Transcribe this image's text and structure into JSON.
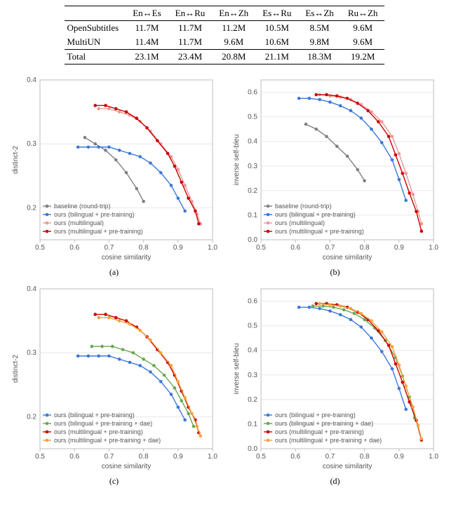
{
  "table": {
    "columns": [
      "",
      "En↔Es",
      "En↔Ru",
      "En↔Zh",
      "Es↔Ru",
      "Es↔Zh",
      "Ru↔Zh"
    ],
    "rows": [
      [
        "OpenSubtitles",
        "11.7M",
        "11.7M",
        "11.2M",
        "10.5M",
        "8.5M",
        "9.6M"
      ],
      [
        "MultiUN",
        "11.4M",
        "11.7M",
        "9.6M",
        "10.6M",
        "9.8M",
        "9.6M"
      ],
      [
        "Total",
        "23.1M",
        "23.4M",
        "20.8M",
        "21.1M",
        "18.3M",
        "19.2M"
      ]
    ]
  },
  "chart_common": {
    "x_label": "cosine similarity",
    "x_min": 0.5,
    "x_max": 1.0,
    "x_ticks": [
      0.5,
      0.6,
      0.7,
      0.8,
      0.9,
      1.0
    ],
    "colors": {
      "baseline": "#808080",
      "bilingual_pre": "#3b78d8",
      "bilingual_pre_dae": "#6aa84f",
      "multilingual": "#ea9999",
      "multilingual_pre": "#cc0000",
      "multilingual_pre_dae": "#f1a33c"
    },
    "marker_radius": 2.3,
    "line_width": 1.4,
    "tick_fontsize": 10,
    "axis_label_fontsize": 10,
    "legend_fontsize": 9,
    "grid_color": "#e8e8e8",
    "axis_color": "#bdbdbd",
    "background": "#ffffff"
  },
  "charts": {
    "a": {
      "caption": "(a)",
      "y_label": "distinct-2",
      "y_min": 0.15,
      "y_max": 0.4,
      "y_ticks": [
        0.2,
        0.3,
        0.4
      ],
      "legend_pos": "bottom-left",
      "series": [
        {
          "key": "baseline",
          "label": "baseline (round-trip)",
          "pts": [
            [
              0.63,
              0.31
            ],
            [
              0.66,
              0.3
            ],
            [
              0.69,
              0.29
            ],
            [
              0.72,
              0.275
            ],
            [
              0.75,
              0.255
            ],
            [
              0.78,
              0.23
            ],
            [
              0.8,
              0.21
            ]
          ]
        },
        {
          "key": "bilingual_pre",
          "label": "ours (bilingual + pre-training)",
          "pts": [
            [
              0.61,
              0.295
            ],
            [
              0.64,
              0.295
            ],
            [
              0.67,
              0.295
            ],
            [
              0.7,
              0.295
            ],
            [
              0.73,
              0.29
            ],
            [
              0.76,
              0.285
            ],
            [
              0.79,
              0.28
            ],
            [
              0.82,
              0.27
            ],
            [
              0.85,
              0.255
            ],
            [
              0.88,
              0.235
            ],
            [
              0.9,
              0.215
            ],
            [
              0.92,
              0.195
            ]
          ]
        },
        {
          "key": "multilingual",
          "label": "ours (multilingual)",
          "pts": [
            [
              0.67,
              0.355
            ],
            [
              0.7,
              0.355
            ],
            [
              0.73,
              0.35
            ],
            [
              0.76,
              0.345
            ],
            [
              0.79,
              0.335
            ],
            [
              0.82,
              0.32
            ],
            [
              0.85,
              0.3
            ],
            [
              0.88,
              0.28
            ],
            [
              0.9,
              0.26
            ],
            [
              0.92,
              0.235
            ],
            [
              0.94,
              0.21
            ],
            [
              0.955,
              0.19
            ],
            [
              0.965,
              0.175
            ]
          ]
        },
        {
          "key": "multilingual_pre",
          "label": "ours (multilingual + pre-training)",
          "pts": [
            [
              0.66,
              0.36
            ],
            [
              0.69,
              0.36
            ],
            [
              0.72,
              0.355
            ],
            [
              0.75,
              0.35
            ],
            [
              0.78,
              0.34
            ],
            [
              0.81,
              0.325
            ],
            [
              0.84,
              0.305
            ],
            [
              0.87,
              0.285
            ],
            [
              0.89,
              0.265
            ],
            [
              0.91,
              0.24
            ],
            [
              0.93,
              0.215
            ],
            [
              0.95,
              0.195
            ],
            [
              0.96,
              0.175
            ]
          ]
        }
      ]
    },
    "b": {
      "caption": "(b)",
      "y_label": "inverse self-bleu",
      "y_min": 0.0,
      "y_max": 0.65,
      "y_ticks": [
        0.0,
        0.1,
        0.2,
        0.3,
        0.4,
        0.5,
        0.6
      ],
      "legend_pos": "bottom-left",
      "series": [
        {
          "key": "baseline",
          "label": "baseline (round-trip)",
          "pts": [
            [
              0.63,
              0.47
            ],
            [
              0.66,
              0.45
            ],
            [
              0.69,
              0.42
            ],
            [
              0.72,
              0.38
            ],
            [
              0.75,
              0.34
            ],
            [
              0.78,
              0.285
            ],
            [
              0.8,
              0.24
            ]
          ]
        },
        {
          "key": "bilingual_pre",
          "label": "ours (bilingual + pre-training)",
          "pts": [
            [
              0.61,
              0.575
            ],
            [
              0.64,
              0.575
            ],
            [
              0.67,
              0.57
            ],
            [
              0.7,
              0.56
            ],
            [
              0.73,
              0.545
            ],
            [
              0.76,
              0.525
            ],
            [
              0.79,
              0.495
            ],
            [
              0.82,
              0.45
            ],
            [
              0.85,
              0.395
            ],
            [
              0.88,
              0.325
            ],
            [
              0.9,
              0.245
            ],
            [
              0.92,
              0.16
            ]
          ]
        },
        {
          "key": "multilingual",
          "label": "ours (multilingual)",
          "pts": [
            [
              0.67,
              0.59
            ],
            [
              0.7,
              0.585
            ],
            [
              0.73,
              0.58
            ],
            [
              0.76,
              0.57
            ],
            [
              0.79,
              0.55
            ],
            [
              0.82,
              0.52
            ],
            [
              0.85,
              0.48
            ],
            [
              0.88,
              0.42
            ],
            [
              0.9,
              0.35
            ],
            [
              0.92,
              0.27
            ],
            [
              0.94,
              0.185
            ],
            [
              0.955,
              0.115
            ],
            [
              0.965,
              0.065
            ]
          ]
        },
        {
          "key": "multilingual_pre",
          "label": "ours (multilingual + pre-training)",
          "pts": [
            [
              0.66,
              0.59
            ],
            [
              0.69,
              0.59
            ],
            [
              0.72,
              0.585
            ],
            [
              0.75,
              0.575
            ],
            [
              0.78,
              0.555
            ],
            [
              0.81,
              0.525
            ],
            [
              0.84,
              0.48
            ],
            [
              0.87,
              0.42
            ],
            [
              0.89,
              0.345
            ],
            [
              0.91,
              0.27
            ],
            [
              0.93,
              0.19
            ],
            [
              0.95,
              0.115
            ],
            [
              0.965,
              0.035
            ]
          ]
        }
      ]
    },
    "c": {
      "caption": "(c)",
      "y_label": "distinct-2",
      "y_min": 0.15,
      "y_max": 0.4,
      "y_ticks": [
        0.2,
        0.3,
        0.4
      ],
      "legend_pos": "bottom-left",
      "series": [
        {
          "key": "bilingual_pre",
          "label": "ours (bilingual + pre-training)",
          "pts": [
            [
              0.61,
              0.295
            ],
            [
              0.64,
              0.295
            ],
            [
              0.67,
              0.295
            ],
            [
              0.7,
              0.295
            ],
            [
              0.73,
              0.29
            ],
            [
              0.76,
              0.285
            ],
            [
              0.79,
              0.28
            ],
            [
              0.82,
              0.27
            ],
            [
              0.85,
              0.255
            ],
            [
              0.88,
              0.235
            ],
            [
              0.9,
              0.215
            ],
            [
              0.92,
              0.195
            ]
          ]
        },
        {
          "key": "bilingual_pre_dae",
          "label": "ours (bilingual + pre-training + dae)",
          "pts": [
            [
              0.65,
              0.31
            ],
            [
              0.68,
              0.31
            ],
            [
              0.71,
              0.31
            ],
            [
              0.74,
              0.305
            ],
            [
              0.77,
              0.3
            ],
            [
              0.8,
              0.29
            ],
            [
              0.83,
              0.28
            ],
            [
              0.86,
              0.265
            ],
            [
              0.89,
              0.245
            ],
            [
              0.91,
              0.225
            ],
            [
              0.93,
              0.205
            ],
            [
              0.945,
              0.185
            ]
          ]
        },
        {
          "key": "multilingual_pre",
          "label": "ours (multilingual + pre-training)",
          "pts": [
            [
              0.66,
              0.36
            ],
            [
              0.69,
              0.36
            ],
            [
              0.72,
              0.355
            ],
            [
              0.75,
              0.35
            ],
            [
              0.78,
              0.34
            ],
            [
              0.81,
              0.325
            ],
            [
              0.84,
              0.305
            ],
            [
              0.87,
              0.285
            ],
            [
              0.89,
              0.265
            ],
            [
              0.91,
              0.24
            ],
            [
              0.93,
              0.215
            ],
            [
              0.95,
              0.195
            ],
            [
              0.96,
              0.175
            ]
          ]
        },
        {
          "key": "multilingual_pre_dae",
          "label": "ours (multilingual + pre-training + dae)",
          "pts": [
            [
              0.67,
              0.355
            ],
            [
              0.7,
              0.355
            ],
            [
              0.73,
              0.35
            ],
            [
              0.76,
              0.345
            ],
            [
              0.79,
              0.335
            ],
            [
              0.82,
              0.32
            ],
            [
              0.85,
              0.3
            ],
            [
              0.88,
              0.28
            ],
            [
              0.9,
              0.255
            ],
            [
              0.92,
              0.23
            ],
            [
              0.94,
              0.205
            ],
            [
              0.955,
              0.185
            ],
            [
              0.965,
              0.17
            ]
          ]
        }
      ]
    },
    "d": {
      "caption": "(d)",
      "y_label": "inverse self-bleu",
      "y_min": 0.0,
      "y_max": 0.65,
      "y_ticks": [
        0.0,
        0.1,
        0.2,
        0.3,
        0.4,
        0.5,
        0.6
      ],
      "legend_pos": "bottom-left",
      "series": [
        {
          "key": "bilingual_pre",
          "label": "ours (bilingual + pre-training)",
          "pts": [
            [
              0.61,
              0.575
            ],
            [
              0.64,
              0.575
            ],
            [
              0.67,
              0.57
            ],
            [
              0.7,
              0.56
            ],
            [
              0.73,
              0.545
            ],
            [
              0.76,
              0.525
            ],
            [
              0.79,
              0.495
            ],
            [
              0.82,
              0.45
            ],
            [
              0.85,
              0.395
            ],
            [
              0.88,
              0.325
            ],
            [
              0.9,
              0.245
            ],
            [
              0.92,
              0.16
            ]
          ]
        },
        {
          "key": "bilingual_pre_dae",
          "label": "ours (bilingual + pre-training + dae)",
          "pts": [
            [
              0.65,
              0.58
            ],
            [
              0.68,
              0.58
            ],
            [
              0.71,
              0.575
            ],
            [
              0.74,
              0.565
            ],
            [
              0.77,
              0.55
            ],
            [
              0.8,
              0.525
            ],
            [
              0.83,
              0.49
            ],
            [
              0.86,
              0.44
            ],
            [
              0.89,
              0.37
            ],
            [
              0.91,
              0.295
            ],
            [
              0.93,
              0.21
            ],
            [
              0.945,
              0.125
            ]
          ]
        },
        {
          "key": "multilingual_pre",
          "label": "ours (multilingual + pre-training)",
          "pts": [
            [
              0.66,
              0.59
            ],
            [
              0.69,
              0.59
            ],
            [
              0.72,
              0.585
            ],
            [
              0.75,
              0.575
            ],
            [
              0.78,
              0.555
            ],
            [
              0.81,
              0.525
            ],
            [
              0.84,
              0.48
            ],
            [
              0.87,
              0.42
            ],
            [
              0.89,
              0.345
            ],
            [
              0.91,
              0.27
            ],
            [
              0.93,
              0.19
            ],
            [
              0.95,
              0.115
            ],
            [
              0.965,
              0.035
            ]
          ]
        },
        {
          "key": "multilingual_pre_dae",
          "label": "ours (multilingual + pre-training + dae)",
          "pts": [
            [
              0.67,
              0.59
            ],
            [
              0.7,
              0.585
            ],
            [
              0.73,
              0.58
            ],
            [
              0.76,
              0.57
            ],
            [
              0.79,
              0.55
            ],
            [
              0.82,
              0.52
            ],
            [
              0.85,
              0.475
            ],
            [
              0.88,
              0.415
            ],
            [
              0.9,
              0.34
            ],
            [
              0.92,
              0.255
            ],
            [
              0.94,
              0.17
            ],
            [
              0.955,
              0.095
            ],
            [
              0.965,
              0.04
            ]
          ]
        }
      ]
    }
  }
}
